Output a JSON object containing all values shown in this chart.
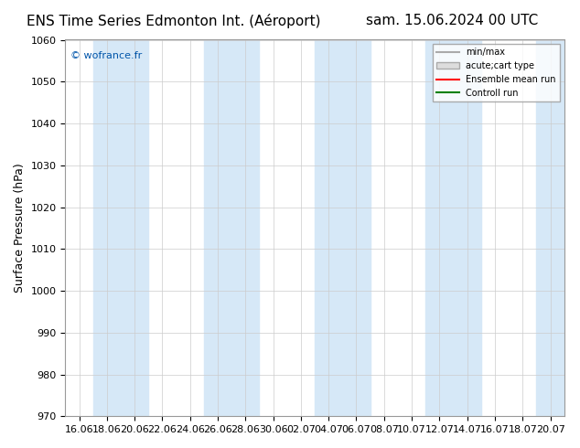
{
  "title_left": "ENS Time Series Edmonton Int. (Aéroport)",
  "title_right": "sam. 15.06.2024 00 UTC",
  "ylabel": "Surface Pressure (hPa)",
  "ylim": [
    970,
    1060
  ],
  "yticks": [
    970,
    980,
    990,
    1000,
    1010,
    1020,
    1030,
    1040,
    1050,
    1060
  ],
  "xtick_labels": [
    "16.06",
    "18.06",
    "20.06",
    "22.06",
    "24.06",
    "26.06",
    "28.06",
    "30.06",
    "02.07",
    "04.07",
    "06.07",
    "08.07",
    "10.07",
    "12.07",
    "14.07",
    "16.07",
    "18.07",
    "20.07"
  ],
  "background_color": "#ffffff",
  "band_color": "#d6e8f7",
  "band_starts": [
    1,
    5,
    9,
    13,
    17
  ],
  "watermark": "© wofrance.fr",
  "legend_entries": [
    "min/max",
    "acute;cart type",
    "Ensemble mean run",
    "Controll run"
  ],
  "legend_colors": [
    "#aaaaaa",
    "#cccccc",
    "#ff0000",
    "#008000"
  ],
  "title_fontsize": 11,
  "axis_fontsize": 9,
  "tick_fontsize": 8
}
